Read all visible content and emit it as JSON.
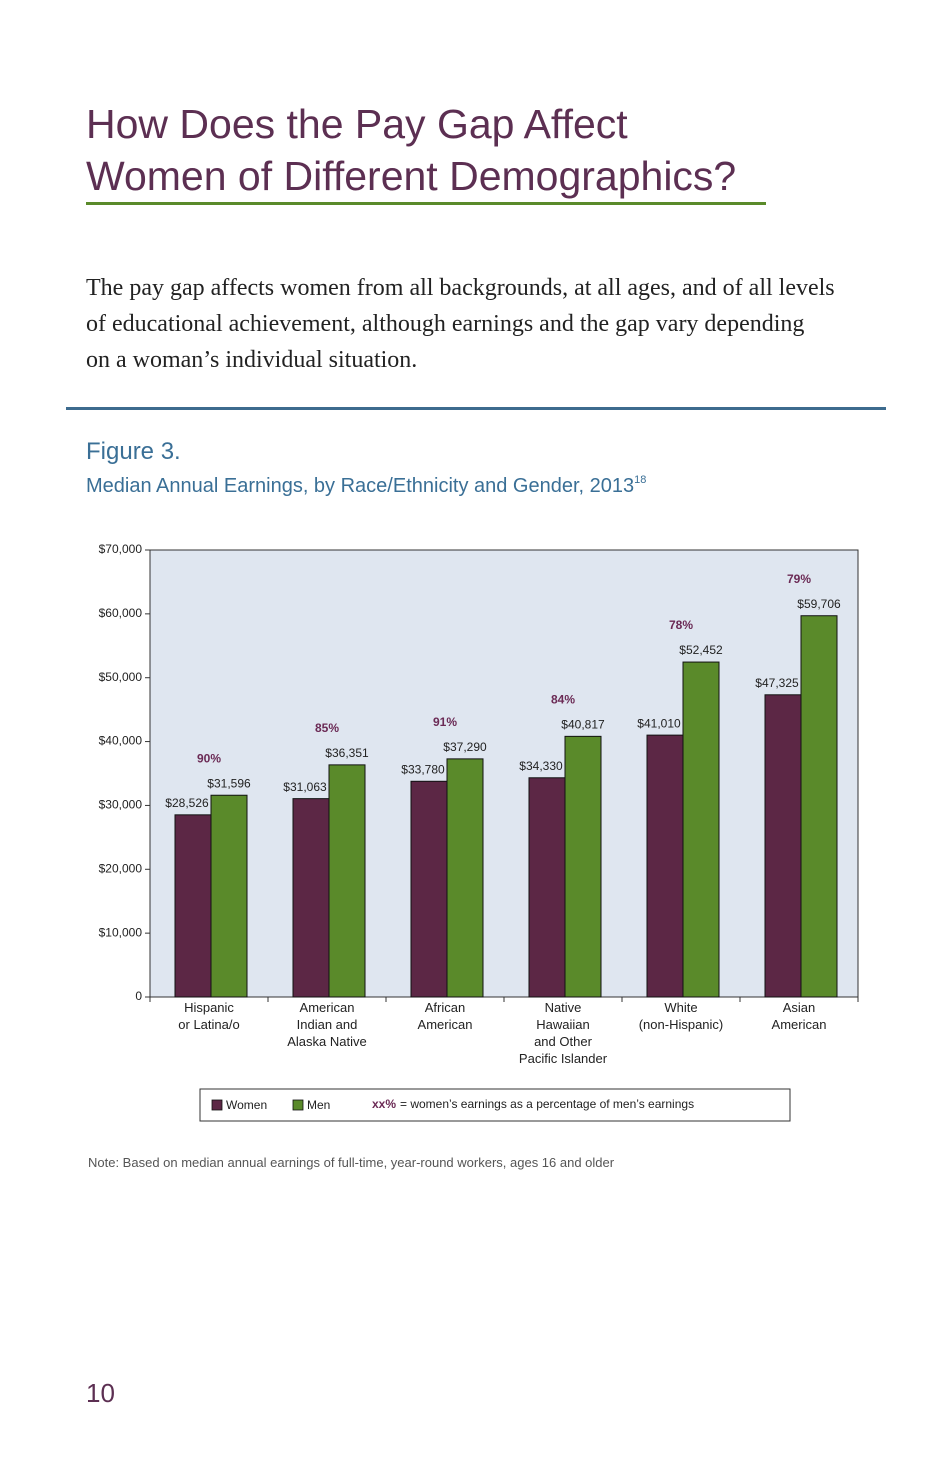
{
  "header": {
    "title_line1": "How Does the Pay Gap Affect",
    "title_line2": "Women of Different Demographics?"
  },
  "intro": {
    "lines": [
      "The pay gap affects women from all backgrounds, at all ages, and of all levels",
      "of educational achievement, although earnings and the gap vary depending",
      "on a woman’s individual situation."
    ]
  },
  "figure": {
    "label": "Figure 3.",
    "title": "Median Annual Earnings, by Race/Ethnicity and Gender, 2013",
    "footnote_ref": "18"
  },
  "chart_data": {
    "type": "bar",
    "categories": [
      "Hispanic\nor Latina/o",
      "American\nIndian and\nAlaska Native",
      "African\nAmerican",
      "Native\nHawaiian\nand Other\nPacific Islander",
      "White\n(non-Hispanic)",
      "Asian\nAmerican"
    ],
    "series": [
      {
        "name": "Women",
        "color": "#5c2745",
        "values": [
          28526,
          31063,
          33780,
          34330,
          41010,
          47325
        ],
        "value_labels": [
          "$28,526",
          "$31,063",
          "$33,780",
          "$34,330",
          "$41,010",
          "$47,325"
        ]
      },
      {
        "name": "Men",
        "color": "#5a8a2a",
        "values": [
          31596,
          36351,
          37290,
          40817,
          52452,
          59706
        ],
        "value_labels": [
          "$31,596",
          "$36,351",
          "$37,290",
          "$40,817",
          "$52,452",
          "$59,706"
        ]
      }
    ],
    "ratio": {
      "values": [
        90,
        85,
        91,
        84,
        78,
        79
      ],
      "value_labels": [
        "90%",
        "85%",
        "91%",
        "84%",
        "78%",
        "79%"
      ],
      "color": "#6b2a55"
    },
    "legend_key": "xx%",
    "legend_note": "= women’s earnings as a percentage of men’s earnings",
    "ylim": [
      0,
      70000
    ],
    "yticks": [
      0,
      {
        "value": 10000,
        "label": "$10,000"
      },
      {
        "value": 20000,
        "label": "$20,000"
      },
      {
        "value": 30000,
        "label": "$30,000"
      },
      {
        "value": 40000,
        "label": "$40,000"
      },
      {
        "value": 50000,
        "label": "$50,000"
      },
      {
        "value": 60000,
        "label": "$60,000"
      },
      {
        "value": 70000,
        "label": "$70,000"
      }
    ],
    "grid": false,
    "plot_background": "#dfe6f0"
  },
  "note": "Note: Based on median annual earnings of full-time, year-round workers, ages 16 and older",
  "page_number": "10"
}
